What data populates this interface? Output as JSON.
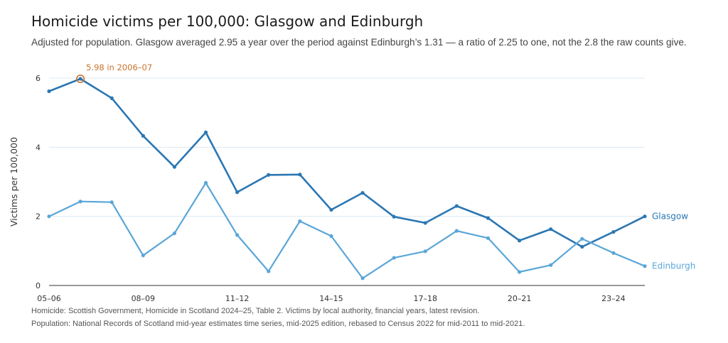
{
  "header": {
    "title": "Homicide victims per 100,000: Glasgow and Edinburgh",
    "subtitle": "Adjusted for population. Glasgow averaged 2.95 a year over the period against Edinburgh’s 1.31 — a ratio of 2.25 to one, not the 2.8 the raw counts give."
  },
  "sources": [
    "Homicide: Scottish Government, Homicide in Scotland 2024–25, Table 2. Victims by local authority, financial years, latest revision.",
    "Population: National Records of Scotland mid-year estimates time series, mid-2025 edition, rebased to Census 2022 for mid-2011 to mid-2021."
  ],
  "chart_data": {
    "type": "line",
    "title": "Homicide victims per 100,000: Glasgow and Edinburgh",
    "xlabel": "",
    "ylabel": "Victims per 100,000",
    "ylim": [
      0,
      6
    ],
    "yticks": [
      0,
      2,
      4,
      6
    ],
    "grid": true,
    "x": [
      "2005–06",
      "2006–07",
      "2007–08",
      "2008–09",
      "2009–10",
      "2010–11",
      "2011–12",
      "2012–13",
      "2013–14",
      "2014–15",
      "2015–16",
      "2016–17",
      "2017–18",
      "2018–19",
      "2019–20",
      "2020–21",
      "2021–22",
      "2022–23",
      "2023–24",
      "2024–25"
    ],
    "xtick_labels": [
      "05–06",
      "08–09",
      "11–12",
      "14–15",
      "17–18",
      "20–21",
      "23–24"
    ],
    "xtick_index": [
      0,
      3,
      6,
      9,
      12,
      15,
      18
    ],
    "series": [
      {
        "name": "Glasgow",
        "color": "#2b77b3",
        "values": [
          5.62,
          5.98,
          5.42,
          4.33,
          3.43,
          4.43,
          2.7,
          3.2,
          3.21,
          2.19,
          2.68,
          1.99,
          1.81,
          2.3,
          1.95,
          1.3,
          1.63,
          1.12,
          1.55,
          2.0
        ]
      },
      {
        "name": "Edinburgh",
        "color": "#5aa6d8",
        "values": [
          2.0,
          2.43,
          2.41,
          0.87,
          1.51,
          2.97,
          1.46,
          0.41,
          1.86,
          1.43,
          0.21,
          0.8,
          0.99,
          1.58,
          1.37,
          0.39,
          0.59,
          1.35,
          0.94,
          0.56
        ]
      }
    ],
    "annotation": {
      "text": "5.98 in 2006–07",
      "series": "Glasgow",
      "index": 1,
      "color": "#c8742f"
    }
  }
}
